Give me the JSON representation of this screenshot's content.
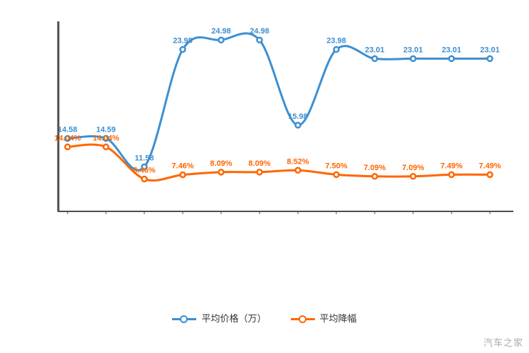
{
  "chart_data": {
    "type": "line",
    "title": "",
    "xlabel": "",
    "ylabel": "",
    "grid": false,
    "legend_position": "bottom",
    "axis_color": "#4d4d4d",
    "x_count": 12,
    "series": [
      {
        "name": "平均价格（万）",
        "color": "#3d8fd1",
        "unit": "万",
        "values": [
          14.58,
          14.59,
          11.58,
          23.98,
          24.98,
          24.98,
          15.98,
          23.98,
          23.01,
          23.01,
          23.01,
          23.01
        ],
        "point_labels": [
          "14.58",
          "14.59",
          "11.58",
          "23.98",
          "24.98",
          "24.98",
          "15.98",
          "23.98",
          "23.01",
          "23.01",
          "23.01",
          "23.01"
        ],
        "ylim": [
          7.4,
          26.2
        ]
      },
      {
        "name": "平均降幅",
        "color": "#ff6600",
        "unit": "%",
        "values": [
          14.04,
          14.04,
          6.46,
          7.46,
          8.09,
          8.09,
          8.52,
          7.5,
          7.09,
          7.09,
          7.49,
          7.49
        ],
        "point_labels": [
          "14.04%",
          "14.04%",
          "6.46%",
          "7.46%",
          "8.09%",
          "8.09%",
          "8.52%",
          "7.50%",
          "7.09%",
          "7.09%",
          "7.49%",
          "7.49%"
        ],
        "ylim": [
          0,
          42
        ]
      }
    ]
  },
  "legend": {
    "items": [
      {
        "label": "平均价格（万）",
        "color": "#3d8fd1"
      },
      {
        "label": "平均降幅",
        "color": "#ff6600"
      }
    ]
  },
  "watermark": "汽车之家"
}
